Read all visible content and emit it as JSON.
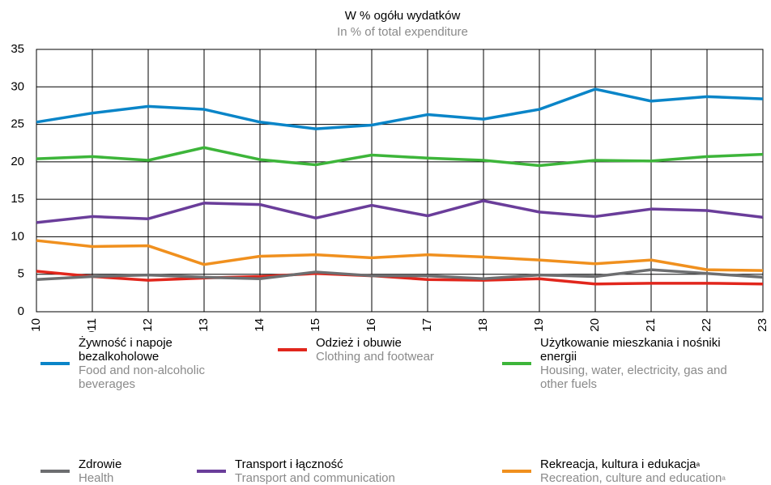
{
  "chart_data": {
    "type": "line",
    "title": "W % ogółu wydatków",
    "subtitle": "In % of total expenditure",
    "categories": [
      "2010",
      "2011",
      "2012",
      "2013",
      "2014",
      "2015",
      "2016",
      "2017",
      "2018",
      "2019",
      "2020",
      "2021",
      "2022",
      "2023"
    ],
    "ylim": [
      0,
      35
    ],
    "yticks": [
      0,
      5,
      10,
      15,
      20,
      25,
      30,
      35
    ],
    "grid": true,
    "series": [
      {
        "name": "Żywność i napoje bezalkoholowe",
        "name_en": "Food and non-alcoholic beverages",
        "color": "#0a85c8",
        "values": [
          25.3,
          26.5,
          27.4,
          27.0,
          25.3,
          24.4,
          24.9,
          26.3,
          25.7,
          27.0,
          29.7,
          28.1,
          28.7,
          28.4
        ]
      },
      {
        "name": "Odzież i obuwie",
        "name_en": "Clothing and footwear",
        "color": "#e1261c",
        "values": [
          5.4,
          4.7,
          4.2,
          4.5,
          4.7,
          5.1,
          4.8,
          4.3,
          4.2,
          4.4,
          3.7,
          3.8,
          3.8,
          3.7
        ]
      },
      {
        "name": "Użytkowanie mieszkania i nośniki energii",
        "name_en": "Housing, water, electricity, gas and other fuels",
        "color": "#3db53a",
        "values": [
          20.4,
          20.7,
          20.2,
          21.9,
          20.3,
          19.6,
          20.9,
          20.5,
          20.2,
          19.5,
          20.2,
          20.1,
          20.7,
          21.0
        ]
      },
      {
        "name": "Zdrowie",
        "name_en": "Health",
        "color": "#6d6e70",
        "values": [
          4.3,
          4.7,
          4.9,
          4.6,
          4.4,
          5.3,
          4.8,
          4.8,
          4.4,
          4.9,
          4.7,
          5.6,
          5.1,
          4.6
        ]
      },
      {
        "name": "Transport i łączność",
        "name_en": "Transport and communication",
        "color": "#6a3d9a",
        "values": [
          11.9,
          12.7,
          12.4,
          14.5,
          14.3,
          12.5,
          14.2,
          12.8,
          14.8,
          13.3,
          12.7,
          13.7,
          13.5,
          12.6
        ]
      },
      {
        "name": "Rekreacja, kultura i edukacja",
        "name_en": "Recreation, culture and education",
        "note": "a",
        "color": "#f0901e",
        "values": [
          9.5,
          8.7,
          8.8,
          6.3,
          7.4,
          7.6,
          7.2,
          7.6,
          7.3,
          6.9,
          6.4,
          6.9,
          5.6,
          5.5
        ]
      }
    ]
  }
}
